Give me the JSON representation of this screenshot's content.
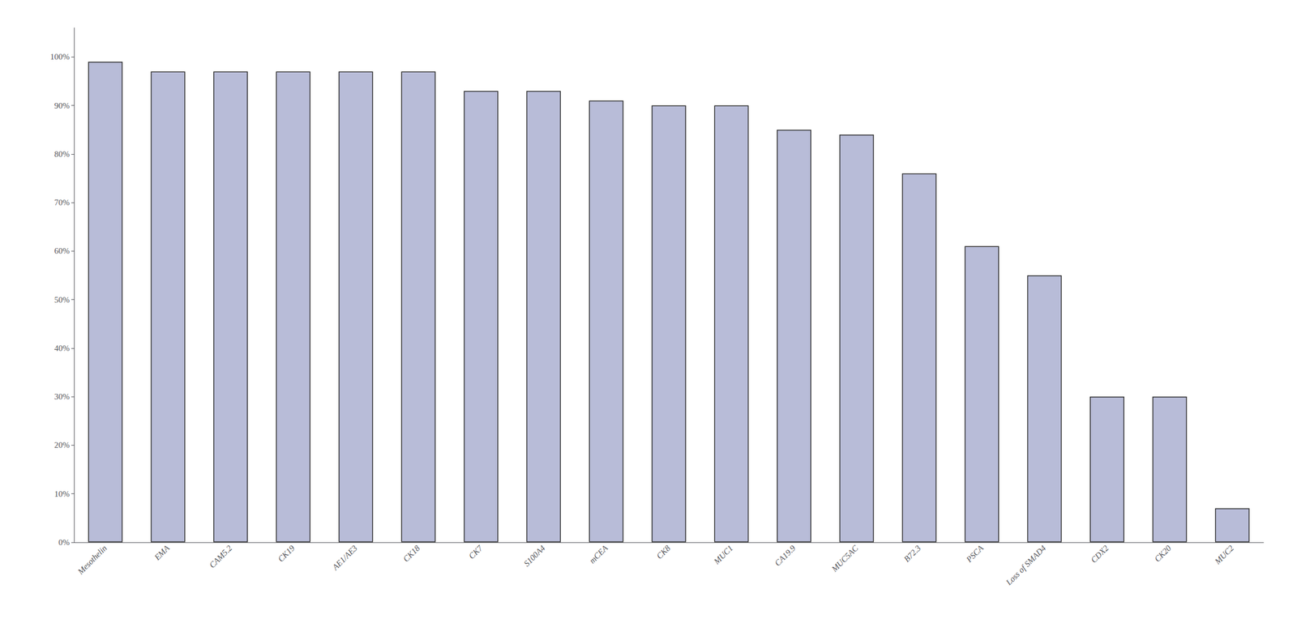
{
  "chart_data": {
    "type": "bar",
    "categories": [
      "Mesothelin",
      "EMA",
      "CAM5.2",
      "CK19",
      "AE1/AE3",
      "CK18",
      "CK7",
      "S100A4",
      "mCEA",
      "CK8",
      "MUC1",
      "CA19.9",
      "MUC5AC",
      "B72.3",
      "PSCA",
      "Loss of SMAD4",
      "CDX2",
      "CK20",
      "MUC2"
    ],
    "values": [
      99,
      97,
      97,
      97,
      97,
      97,
      93,
      93,
      91,
      90,
      90,
      85,
      84,
      76,
      61,
      55,
      30,
      30,
      7
    ],
    "color": "#b8bcd8",
    "ylim": [
      0,
      106
    ],
    "yticks": [
      {
        "value": 0,
        "label": "0%"
      },
      {
        "value": 10,
        "label": "10%"
      },
      {
        "value": 20,
        "label": "20%"
      },
      {
        "value": 30,
        "label": "30%"
      },
      {
        "value": 40,
        "label": "40%"
      },
      {
        "value": 50,
        "label": "50%"
      },
      {
        "value": 60,
        "label": "60%"
      },
      {
        "value": 70,
        "label": "70%"
      },
      {
        "value": 80,
        "label": "80%"
      },
      {
        "value": 90,
        "label": "90%"
      },
      {
        "value": 100,
        "label": "100%"
      }
    ],
    "grid": false
  }
}
